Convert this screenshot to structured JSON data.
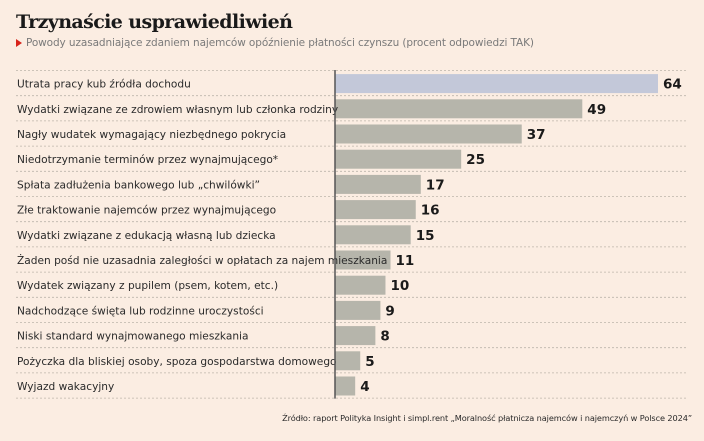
{
  "header": {
    "title": "Trzynaście usprawiedliwień",
    "subtitle": "Powody uzasadniające zdaniem najemców opóźnienie płatności czynszu (procent odpowiedzi TAK)"
  },
  "source": "Źródło: raport Polityka Insight i simpl.rent „Moralność płatnicza najemców i najemczyń w Polsce 2024”",
  "colors": {
    "highlight_bar": "#c3c8d9",
    "bar": "#b6b5ab",
    "axis": "#555555",
    "gridline": "#bdb5ab",
    "accent": "#d8231b"
  },
  "chart_data": {
    "type": "bar",
    "orientation": "horizontal",
    "title": "Trzynaście usprawiedliwień",
    "subtitle": "Powody uzasadniające zdaniem najemców opóźnienie płatności czynszu (procent odpowiedzi TAK)",
    "xlabel": "",
    "ylabel": "",
    "xlim": [
      0,
      64
    ],
    "grid": "dashed row separators",
    "legend": "none",
    "highlight_index": 0,
    "categories": [
      "Utrata pracy kub źródła dochodu",
      "Wydatki związane ze zdrowiem własnym lub członka rodziny",
      "Nagły wudatek wymagający niezbędnego pokrycia",
      "Niedotrzymanie terminów przez wynajmującego*",
      "Spłata zadłużenia bankowego lub „chwilówki”",
      "Złe traktowanie najemców przez wynajmującego",
      "Wydatki związane z edukacją własną lub dziecka",
      "Żaden pośd nie uzasadnia zaległości w opłatach za najem mieszkania",
      "Wydatek związany z pupilem (psem, kotem, etc.)",
      "Nadchodzące święta lub rodzinne uroczystości",
      "Niski standard wynajmowanego mieszkania",
      "Pożyczka dla bliskiej osoby, spoza gospodarstwa domowego",
      "Wyjazd wakacyjny"
    ],
    "values": [
      64,
      49,
      37,
      25,
      17,
      16,
      15,
      11,
      10,
      9,
      8,
      5,
      4
    ]
  }
}
